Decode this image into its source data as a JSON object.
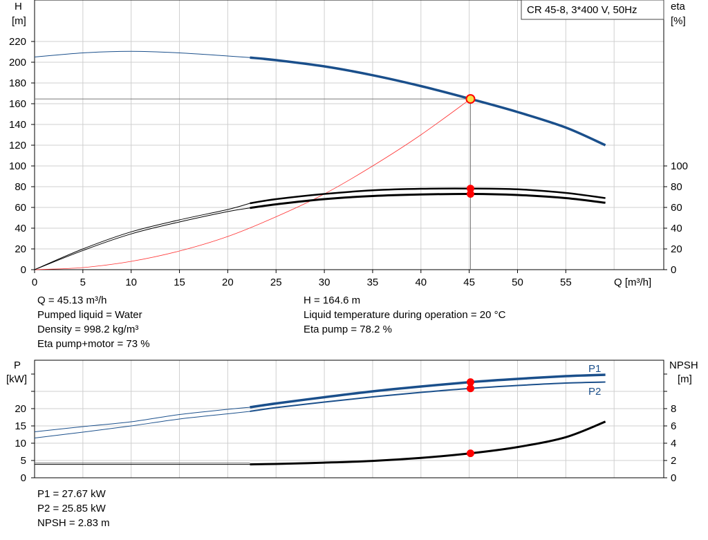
{
  "chart_data": [
    {
      "type": "line",
      "title": "CR 45-8, 3*400 V, 50Hz",
      "xlabel": "Q [m³/h]",
      "ylabel_left": [
        "H",
        "[m]"
      ],
      "ylabel_right": [
        "eta",
        "[%]"
      ],
      "xlim": [
        0,
        64
      ],
      "ylim_left": [
        0,
        230
      ],
      "ylim_right": [
        0,
        100
      ],
      "x_ticks": [
        "0",
        "5",
        "10",
        "15",
        "20",
        "25",
        "30",
        "35",
        "40",
        "45",
        "50",
        "55"
      ],
      "y_ticks_left": [
        "0",
        "20",
        "40",
        "60",
        "80",
        "100",
        "120",
        "140",
        "160",
        "180",
        "200",
        "220"
      ],
      "y_ticks_right": [
        "0",
        "20",
        "40",
        "60",
        "80",
        "100"
      ],
      "grid": true,
      "duty_point": {
        "x": 45.13,
        "y": 164.6
      },
      "series": [
        {
          "name": "H",
          "axis": "left",
          "color": "#1a4f8b",
          "x": [
            0,
            5,
            10,
            15,
            20,
            22.3,
            25,
            30,
            35,
            40,
            45.13,
            50,
            55,
            59.1
          ],
          "y": [
            205,
            209,
            210.5,
            209,
            206,
            204.5,
            202,
            196,
            187.5,
            177,
            164.6,
            152,
            137,
            120
          ]
        },
        {
          "name": "Eta pump",
          "axis": "right",
          "color": "#000000",
          "x": [
            0,
            5,
            10,
            15,
            20,
            22.3,
            25,
            30,
            35,
            40,
            45.13,
            50,
            55,
            59.1
          ],
          "y": [
            0,
            20,
            36.5,
            48,
            58,
            64,
            68,
            73,
            76.5,
            78,
            78.2,
            77.5,
            74,
            69
          ]
        },
        {
          "name": "Eta pump+motor",
          "axis": "right",
          "color": "#000000",
          "x": [
            0,
            5,
            10,
            15,
            20,
            22.3,
            25,
            30,
            35,
            40,
            45.13,
            50,
            55,
            59.1
          ],
          "y": [
            0,
            18.5,
            34.5,
            46,
            56,
            59.5,
            63,
            68,
            71,
            72.5,
            73,
            72,
            69,
            64.5
          ]
        },
        {
          "name": "system curve",
          "axis": "left",
          "color": "#ff3030",
          "x": [
            0,
            5,
            10,
            15,
            20,
            25,
            30,
            35,
            40,
            45.13
          ],
          "y": [
            0,
            2,
            8,
            18,
            32,
            51,
            73,
            100,
            130,
            164.6
          ]
        }
      ]
    },
    {
      "type": "line",
      "ylabel_left": [
        "P",
        "[kW]"
      ],
      "ylabel_right": [
        "NPSH",
        "[m]"
      ],
      "xlim": [
        0,
        64
      ],
      "ylim_left": [
        0,
        30
      ],
      "ylim_right": [
        0,
        12
      ],
      "y_ticks_left": [
        "0",
        "5",
        "10",
        "15",
        "20"
      ],
      "y_ticks_right": [
        "0",
        "2",
        "4",
        "6",
        "8"
      ],
      "grid": true,
      "series": [
        {
          "name": "P1",
          "axis": "left",
          "color": "#1a4f8b",
          "x": [
            0,
            5,
            10,
            15,
            20,
            22.3,
            25,
            30,
            35,
            40,
            45.13,
            50,
            55,
            59.1
          ],
          "y": [
            13.3,
            14.8,
            16.2,
            18.3,
            19.8,
            20.4,
            21.5,
            23.3,
            25,
            26.4,
            27.67,
            28.6,
            29.4,
            29.8
          ]
        },
        {
          "name": "P2",
          "axis": "left",
          "color": "#1a4f8b",
          "x": [
            0,
            5,
            10,
            15,
            20,
            22.3,
            25,
            30,
            35,
            40,
            45.13,
            50,
            55,
            59.1
          ],
          "y": [
            11.5,
            13.2,
            15,
            17,
            18.5,
            19.2,
            20.3,
            21.9,
            23.4,
            24.7,
            25.85,
            26.7,
            27.4,
            27.7
          ]
        },
        {
          "name": "NPSH",
          "axis": "right",
          "color": "#000000",
          "x": [
            0,
            22.3,
            25,
            30,
            35,
            40,
            45.13,
            50,
            55,
            59.1
          ],
          "y": [
            1.55,
            1.55,
            1.6,
            1.75,
            1.95,
            2.3,
            2.83,
            3.55,
            4.7,
            6.5
          ]
        }
      ]
    }
  ],
  "info": {
    "q": "Q = 45.13 m³/h",
    "liquid": "Pumped liquid = Water",
    "density": "Density = 998.2 kg/m³",
    "eta_pm": "Eta pump+motor = 73 %",
    "h": "H = 164.6 m",
    "temp": "Liquid temperature during operation = 20 °C",
    "eta_p": "Eta pump = 78.2 %",
    "p1": "P1 = 27.67 kW",
    "p2": "P2 = 25.85 kW",
    "npsh": "NPSH = 2.83 m"
  },
  "colors": {
    "blue": "#1a4f8b",
    "red": "#ff0000",
    "duty_fill": "#f7e04b"
  }
}
